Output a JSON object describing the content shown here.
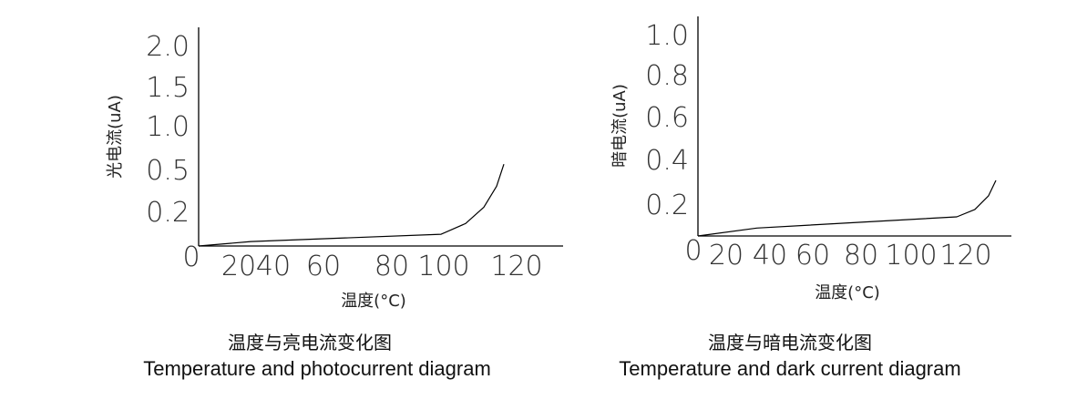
{
  "chart_data": [
    {
      "type": "line",
      "title": "温度与亮电流变化图",
      "subtitle": "Temperature and photocurrent diagram",
      "xlabel": "温度(°C)",
      "ylabel": "光电流(uA)",
      "x_ticks": [
        "0",
        "20",
        "40",
        "60",
        "80",
        "100",
        "120"
      ],
      "y_ticks": [
        "0.2",
        "0.5",
        "1.0",
        "1.5",
        "2.0"
      ],
      "xlim": [
        0,
        130
      ],
      "ylim": [
        0,
        2.0
      ],
      "grid": false,
      "series": [
        {
          "x": [
            0,
            27,
            99,
            106,
            111,
            114.5,
            116.5
          ],
          "y": [
            0,
            0.026,
            0.068,
            0.13,
            0.23,
            0.38,
            0.56
          ]
        }
      ]
    },
    {
      "type": "line",
      "title": "温度与暗电流变化图",
      "subtitle": "Temperature and dark current diagram",
      "xlabel": "温度(°C)",
      "ylabel": "暗电流(uA)",
      "x_ticks": [
        "0",
        "20",
        "40",
        "60",
        "80",
        "100",
        "120"
      ],
      "y_ticks": [
        "0.2",
        "0.4",
        "0.6",
        "0.8",
        "1.0"
      ],
      "xlim": [
        0,
        140
      ],
      "ylim": [
        0,
        1.0
      ],
      "grid": false,
      "series": [
        {
          "x": [
            0,
            34,
            116.7,
            123.3,
            128.3,
            131
          ],
          "y": [
            0,
            0.05,
            0.12,
            0.166,
            0.237,
            0.306
          ]
        }
      ]
    }
  ]
}
